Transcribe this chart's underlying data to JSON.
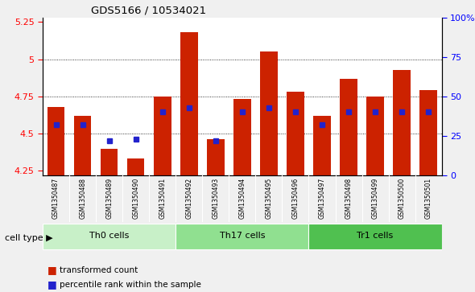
{
  "title": "GDS5166 / 10534021",
  "samples": [
    "GSM1350487",
    "GSM1350488",
    "GSM1350489",
    "GSM1350490",
    "GSM1350491",
    "GSM1350492",
    "GSM1350493",
    "GSM1350494",
    "GSM1350495",
    "GSM1350496",
    "GSM1350497",
    "GSM1350498",
    "GSM1350499",
    "GSM1350500",
    "GSM1350501"
  ],
  "red_values": [
    4.68,
    4.62,
    4.4,
    4.33,
    4.75,
    5.18,
    4.46,
    4.73,
    5.05,
    4.78,
    4.62,
    4.87,
    4.75,
    4.93,
    4.79
  ],
  "blue_values": [
    32,
    32,
    22,
    23,
    40,
    43,
    22,
    40,
    43,
    40,
    32,
    40,
    40,
    40,
    40
  ],
  "cell_groups": [
    {
      "label": "Th0 cells",
      "start": 0,
      "end": 5,
      "color": "#c8f0c8"
    },
    {
      "label": "Th17 cells",
      "start": 5,
      "end": 10,
      "color": "#90e090"
    },
    {
      "label": "Tr1 cells",
      "start": 10,
      "end": 15,
      "color": "#50c050"
    }
  ],
  "ylim_left": [
    4.22,
    5.28
  ],
  "ylim_right": [
    0,
    100
  ],
  "yticks_left": [
    4.25,
    4.5,
    4.75,
    5.0,
    5.25
  ],
  "yticks_right": [
    0,
    25,
    50,
    75,
    100
  ],
  "ytick_labels_left": [
    "4.25",
    "4.5",
    "4.75",
    "5",
    "5.25"
  ],
  "ytick_labels_right": [
    "0",
    "25",
    "50",
    "75",
    "100%"
  ],
  "bar_color": "#cc2200",
  "dot_color": "#2222cc",
  "bar_bottom": 4.22,
  "bar_width": 0.65,
  "legend_items": [
    {
      "color": "#cc2200",
      "label": "transformed count"
    },
    {
      "color": "#2222cc",
      "label": "percentile rank within the sample"
    }
  ],
  "cell_type_label": "cell type",
  "xtick_bg_color": "#d0d0d0",
  "plot_bg_color": "#ffffff",
  "fig_bg_color": "#f0f0f0"
}
